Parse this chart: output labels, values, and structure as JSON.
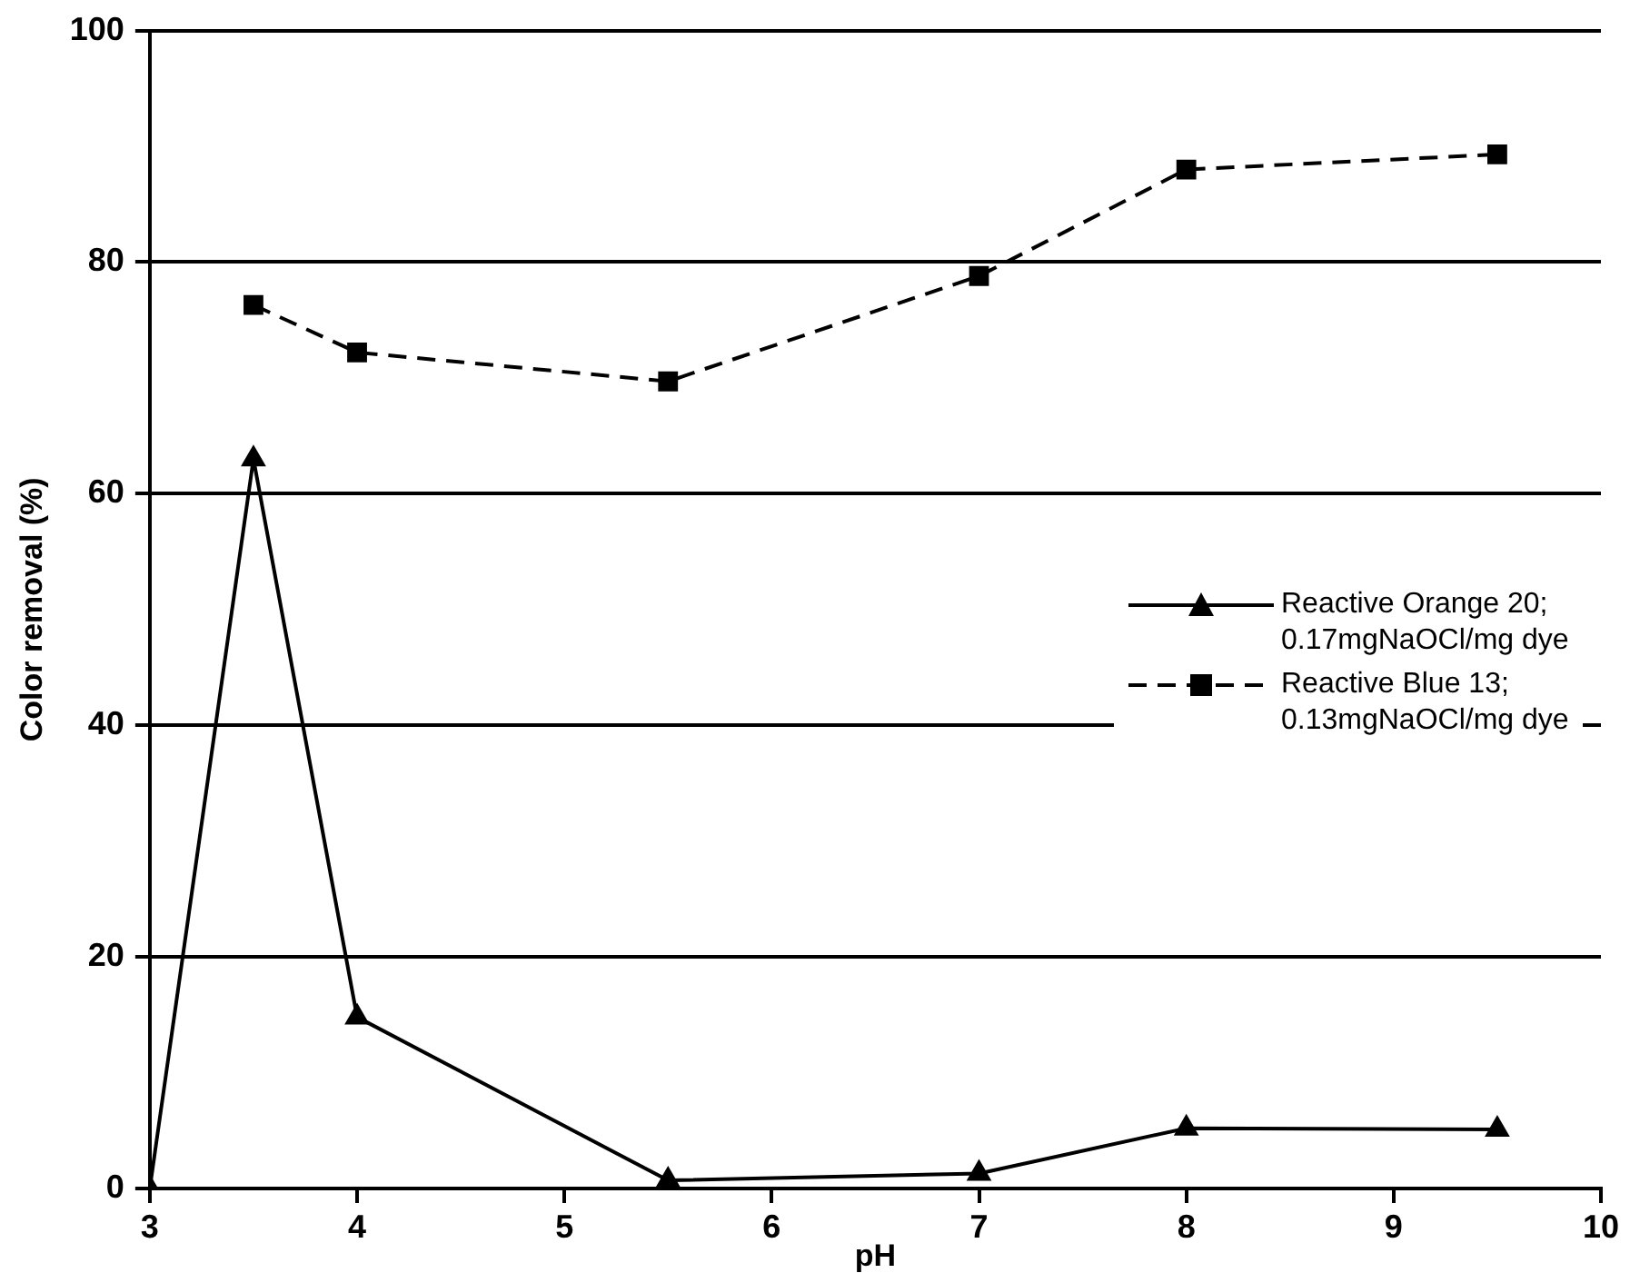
{
  "chart_data": {
    "type": "line",
    "xlabel": "pH",
    "ylabel": "Color removal (%)",
    "xlim": [
      3,
      10
    ],
    "xticks": [
      3,
      4,
      5,
      6,
      7,
      8,
      9,
      10
    ],
    "ylim": [
      0,
      100
    ],
    "yticks": [
      0,
      20,
      40,
      60,
      80,
      100
    ],
    "grid": "y",
    "legend": "right",
    "series": [
      {
        "name": "Reactive Orange 20;\n0.17mgNaOCl/mg dye",
        "color": "#000000",
        "marker": "triangle",
        "line_style": "solid",
        "x": [
          3,
          3.5,
          4,
          5.5,
          7,
          8,
          9.5
        ],
        "values": [
          0,
          63,
          14.8,
          0.7,
          1.3,
          5.2,
          5.1
        ]
      },
      {
        "name": "Reactive Blue 13;\n0.13mgNaOCl/mg dye",
        "color": "#000000",
        "marker": "square",
        "line_style": "dashed",
        "x": [
          3.5,
          4,
          5.5,
          7,
          8,
          9.5
        ],
        "values": [
          76.3,
          72.2,
          69.7,
          78.8,
          88,
          89.3
        ]
      }
    ]
  }
}
